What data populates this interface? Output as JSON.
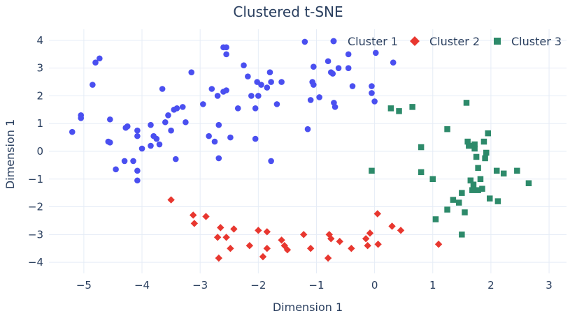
{
  "chart_data": {
    "type": "scatter",
    "title": "Clustered t-SNE",
    "xlabel": "Dimension 1",
    "ylabel": "Dimension 1",
    "xlim": [
      -5.6,
      3.3
    ],
    "ylim": [
      -4.4,
      4.4
    ],
    "xticks": [
      -5,
      -4,
      -3,
      -2,
      -1,
      0,
      1,
      2,
      3
    ],
    "yticks": [
      -4,
      -3,
      -2,
      -1,
      0,
      1,
      2,
      3,
      4
    ],
    "grid": true,
    "legend_position": "top-right",
    "series": [
      {
        "name": "Cluster 1",
        "marker": "circle",
        "color": "#4a4ff0",
        "points": [
          [
            -5.2,
            0.7
          ],
          [
            -5.05,
            1.3
          ],
          [
            -5.05,
            1.2
          ],
          [
            -4.85,
            2.4
          ],
          [
            -4.8,
            3.2
          ],
          [
            -4.73,
            3.35
          ],
          [
            -4.55,
            1.15
          ],
          [
            -4.58,
            0.35
          ],
          [
            -4.55,
            0.32
          ],
          [
            -4.45,
            -0.65
          ],
          [
            -4.3,
            -0.35
          ],
          [
            -4.28,
            0.85
          ],
          [
            -4.25,
            0.9
          ],
          [
            -4.15,
            -0.35
          ],
          [
            -4.08,
            -0.7
          ],
          [
            -4.08,
            -1.05
          ],
          [
            -4.08,
            0.75
          ],
          [
            -4.08,
            0.55
          ],
          [
            -4.0,
            0.1
          ],
          [
            -3.85,
            0.2
          ],
          [
            -3.85,
            0.95
          ],
          [
            -3.8,
            0.55
          ],
          [
            -3.75,
            0.45
          ],
          [
            -3.7,
            0.25
          ],
          [
            -3.65,
            2.25
          ],
          [
            -3.6,
            1.05
          ],
          [
            -3.55,
            1.3
          ],
          [
            -3.5,
            0.75
          ],
          [
            -3.45,
            1.5
          ],
          [
            -3.4,
            1.55
          ],
          [
            -3.42,
            -0.28
          ],
          [
            -3.3,
            1.6
          ],
          [
            -3.25,
            1.05
          ],
          [
            -3.15,
            2.85
          ],
          [
            -2.95,
            1.7
          ],
          [
            -2.85,
            0.55
          ],
          [
            -2.8,
            2.25
          ],
          [
            -2.75,
            0.35
          ],
          [
            -2.7,
            2.0
          ],
          [
            -2.68,
            0.95
          ],
          [
            -2.68,
            -0.25
          ],
          [
            -2.6,
            2.15
          ],
          [
            -2.6,
            3.75
          ],
          [
            -2.55,
            3.75
          ],
          [
            -2.55,
            3.5
          ],
          [
            -2.55,
            2.2
          ],
          [
            -2.48,
            0.5
          ],
          [
            -2.35,
            1.55
          ],
          [
            -2.25,
            3.1
          ],
          [
            -2.18,
            2.7
          ],
          [
            -2.12,
            2.0
          ],
          [
            -2.05,
            0.45
          ],
          [
            -2.05,
            1.55
          ],
          [
            -2.02,
            2.5
          ],
          [
            -2.0,
            2.0
          ],
          [
            -1.95,
            2.4
          ],
          [
            -1.85,
            2.3
          ],
          [
            -1.8,
            2.85
          ],
          [
            -1.78,
            2.5
          ],
          [
            -1.78,
            -0.35
          ],
          [
            -1.68,
            1.7
          ],
          [
            -1.6,
            2.5
          ],
          [
            -1.2,
            3.95
          ],
          [
            -1.15,
            0.8
          ],
          [
            -1.1,
            1.85
          ],
          [
            -1.07,
            2.5
          ],
          [
            -1.05,
            2.4
          ],
          [
            -1.05,
            3.05
          ],
          [
            -0.95,
            1.95
          ],
          [
            -0.8,
            3.25
          ],
          [
            -0.75,
            2.85
          ],
          [
            -0.72,
            2.8
          ],
          [
            -0.7,
            1.75
          ],
          [
            -0.68,
            1.6
          ],
          [
            -0.62,
            3.0
          ],
          [
            -0.45,
            3.5
          ],
          [
            -0.45,
            3.0
          ],
          [
            -0.38,
            2.35
          ],
          [
            -0.05,
            2.1
          ],
          [
            -0.05,
            2.35
          ],
          [
            0.02,
            3.55
          ],
          [
            0.0,
            1.8
          ],
          [
            0.32,
            3.2
          ]
        ]
      },
      {
        "name": "Cluster 2",
        "marker": "diamond",
        "color": "#e8372f",
        "points": [
          [
            -3.5,
            -1.75
          ],
          [
            -3.12,
            -2.3
          ],
          [
            -3.1,
            -2.6
          ],
          [
            -2.9,
            -2.35
          ],
          [
            -2.7,
            -3.1
          ],
          [
            -2.68,
            -3.85
          ],
          [
            -2.65,
            -2.75
          ],
          [
            -2.55,
            -3.1
          ],
          [
            -2.48,
            -3.5
          ],
          [
            -2.42,
            -2.8
          ],
          [
            -2.15,
            -3.4
          ],
          [
            -2.0,
            -2.85
          ],
          [
            -1.92,
            -3.8
          ],
          [
            -1.85,
            -3.5
          ],
          [
            -1.85,
            -2.9
          ],
          [
            -1.6,
            -3.2
          ],
          [
            -1.55,
            -3.4
          ],
          [
            -1.5,
            -3.55
          ],
          [
            -1.22,
            -3.0
          ],
          [
            -1.1,
            -3.5
          ],
          [
            -0.8,
            -3.85
          ],
          [
            -0.78,
            -3.0
          ],
          [
            -0.75,
            -3.15
          ],
          [
            -0.6,
            -3.25
          ],
          [
            -0.4,
            -3.5
          ],
          [
            -0.15,
            -3.15
          ],
          [
            -0.12,
            -3.4
          ],
          [
            -0.08,
            -2.95
          ],
          [
            0.05,
            -2.25
          ],
          [
            0.06,
            -3.35
          ],
          [
            0.3,
            -2.7
          ],
          [
            0.45,
            -2.85
          ],
          [
            1.1,
            -3.35
          ]
        ]
      },
      {
        "name": "Cluster 3",
        "marker": "square",
        "color": "#2d8a6a",
        "points": [
          [
            -0.05,
            -0.7
          ],
          [
            0.28,
            1.55
          ],
          [
            0.42,
            1.45
          ],
          [
            0.65,
            1.6
          ],
          [
            0.8,
            0.15
          ],
          [
            0.8,
            -0.75
          ],
          [
            1.0,
            -1.0
          ],
          [
            1.05,
            -2.45
          ],
          [
            1.25,
            0.8
          ],
          [
            1.25,
            -2.1
          ],
          [
            1.35,
            -1.75
          ],
          [
            1.45,
            -1.85
          ],
          [
            1.5,
            -1.5
          ],
          [
            1.5,
            -3.0
          ],
          [
            1.55,
            -2.2
          ],
          [
            1.58,
            1.75
          ],
          [
            1.6,
            0.35
          ],
          [
            1.62,
            0.2
          ],
          [
            1.65,
            -1.05
          ],
          [
            1.68,
            -1.4
          ],
          [
            1.7,
            -1.2
          ],
          [
            1.72,
            0.25
          ],
          [
            1.72,
            0.1
          ],
          [
            1.75,
            -0.2
          ],
          [
            1.78,
            -0.6
          ],
          [
            1.78,
            -1.4
          ],
          [
            1.82,
            -1.0
          ],
          [
            1.85,
            -1.35
          ],
          [
            1.88,
            0.35
          ],
          [
            1.9,
            -0.25
          ],
          [
            1.92,
            -0.05
          ],
          [
            1.95,
            0.65
          ],
          [
            1.98,
            -1.7
          ],
          [
            2.1,
            -0.7
          ],
          [
            2.12,
            -1.8
          ],
          [
            2.22,
            -0.8
          ],
          [
            2.45,
            -0.7
          ],
          [
            2.65,
            -1.15
          ]
        ]
      }
    ]
  }
}
